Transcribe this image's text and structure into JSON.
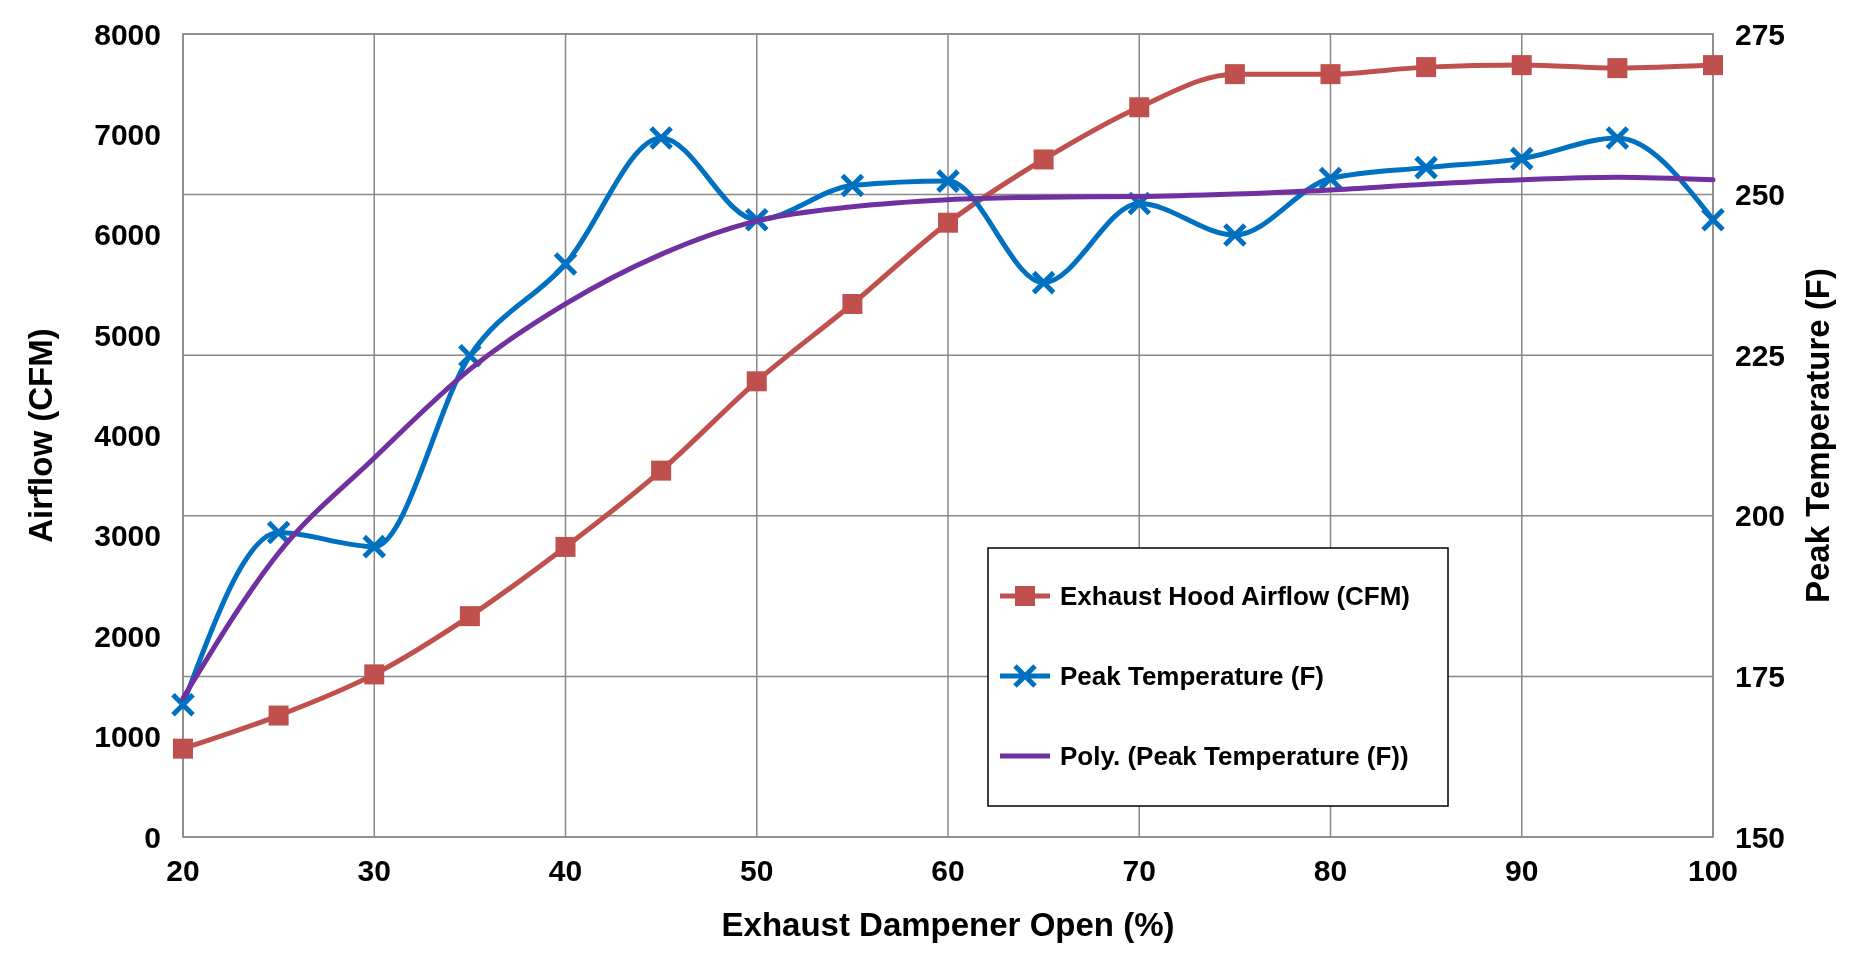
{
  "chart_data": {
    "type": "line",
    "xlabel": "Exhaust Dampener Open (%)",
    "ylabel": "Airflow (CFM)",
    "y2label": "Peak Temperature (F)",
    "x": [
      20,
      25,
      30,
      35,
      40,
      45,
      50,
      55,
      60,
      65,
      70,
      75,
      80,
      85,
      90,
      95,
      100
    ],
    "xlim": [
      20,
      100
    ],
    "xticks": [
      20,
      30,
      40,
      50,
      60,
      70,
      80,
      90,
      100
    ],
    "ylim": [
      0,
      8000
    ],
    "yticks": [
      0,
      1000,
      2000,
      3000,
      4000,
      5000,
      6000,
      7000,
      8000
    ],
    "y2lim": [
      150,
      275
    ],
    "y2ticks": [
      150,
      175,
      200,
      225,
      250,
      275
    ],
    "grid": true,
    "legend": "right",
    "series": [
      {
        "name": "Exhaust Hood Airflow (CFM)",
        "color": "#c0504d",
        "marker": "square",
        "values": [
          880,
          1210,
          1620,
          2200,
          2890,
          3650,
          4540,
          5310,
          6120,
          6750,
          7270,
          7600,
          7600,
          7670,
          7690,
          7660,
          7690
        ]
      },
      {
        "name": "Peak Temperature (F)",
        "color": "#0070c0",
        "marker": "cross",
        "axis": "y2",
        "values": [
          170.6,
          197.4,
          195.2,
          224.9,
          239.2,
          258.8,
          246.1,
          251.4,
          252.1,
          236.3,
          248.6,
          243.7,
          252.5,
          254.2,
          255.6,
          258.8,
          246.1
        ]
      },
      {
        "name": "Poly. (Peak Temperature (F))",
        "color": "#7030a0",
        "marker": "none",
        "axis": "y2",
        "x": [
          20,
          25,
          30,
          35,
          40,
          45,
          50,
          55,
          60,
          65,
          70,
          75,
          80,
          85,
          90,
          95,
          100
        ],
        "values": [
          171.6,
          194.2,
          209.0,
          222.8,
          233.0,
          240.7,
          245.9,
          248.1,
          249.2,
          249.6,
          249.7,
          250.1,
          250.7,
          251.6,
          252.3,
          252.7,
          252.3
        ]
      }
    ]
  }
}
